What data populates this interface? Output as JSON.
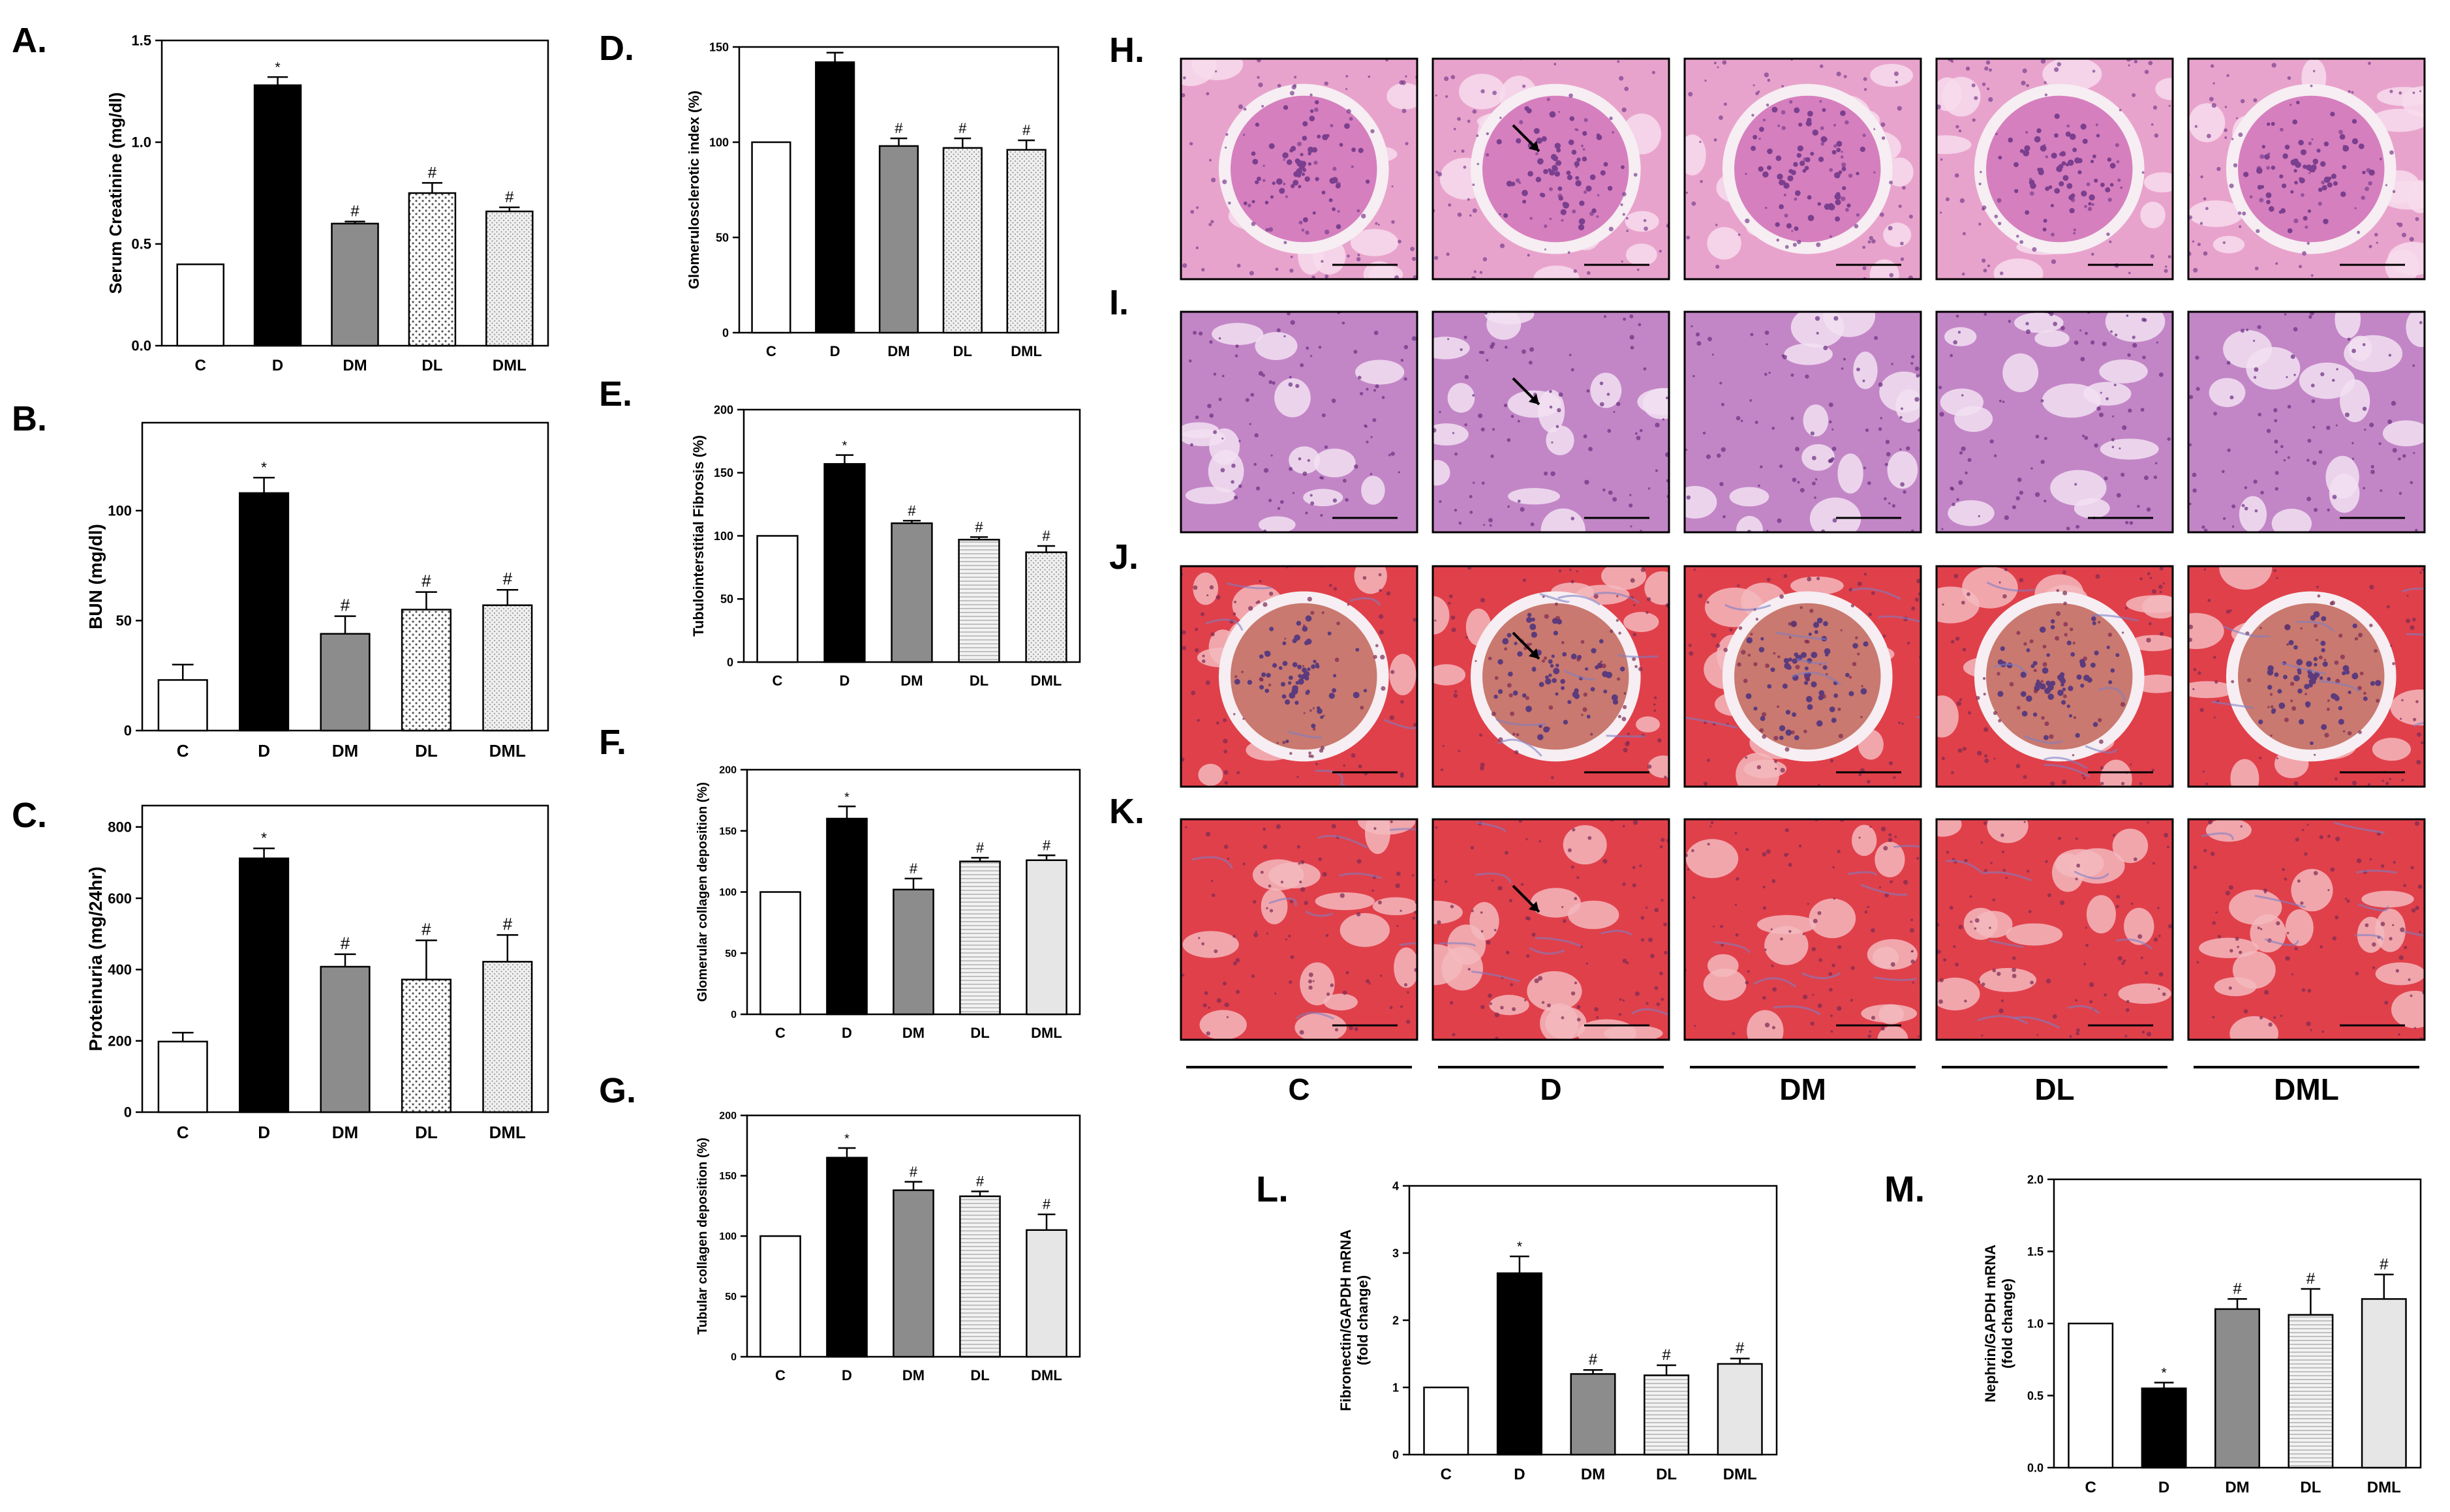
{
  "colors": {
    "C": "#ffffff",
    "D": "#000000",
    "DM": "#8c8c8c",
    "DL": "#d6d6d6",
    "DML": "#e6e6e6",
    "axis": "#000000",
    "he_background": "#e8a3cc",
    "he_nuclei": "#7a3f8e",
    "pas_background": "#c286c6",
    "pas_dark": "#6a2d80",
    "masson_red": "#e0404a",
    "masson_light": "#f3b9bd",
    "masson_blue": "#7d7ec4"
  },
  "chart_data": [
    {
      "panel": "A.",
      "type": "bar",
      "categories": [
        "C",
        "D",
        "DM",
        "DL",
        "DML"
      ],
      "values": [
        0.4,
        1.28,
        0.6,
        0.75,
        0.66
      ],
      "errors": [
        0,
        0.04,
        0.01,
        0.05,
        0.02
      ],
      "annotations": [
        "",
        "*",
        "#",
        "#",
        "#"
      ],
      "ylabel": "Serum Creatinine (mg/dl)",
      "ylim": [
        0,
        1.5
      ],
      "yticks": [
        0.0,
        0.5,
        1.0,
        1.5
      ],
      "ytick_labels": [
        "0.0",
        "0.5",
        "1.0",
        "1.5"
      ],
      "patterns": [
        "none",
        "none",
        "none",
        "dots",
        "fine-dots"
      ]
    },
    {
      "panel": "B.",
      "type": "bar",
      "categories": [
        "C",
        "D",
        "DM",
        "DL",
        "DML"
      ],
      "values": [
        23,
        108,
        44,
        55,
        57
      ],
      "errors": [
        7,
        7,
        8,
        8,
        7
      ],
      "annotations": [
        "",
        "*",
        "#",
        "#",
        "#"
      ],
      "ylabel": "BUN (mg/dl)",
      "ylim": [
        0,
        140
      ],
      "yticks": [
        0,
        50,
        100
      ],
      "ytick_labels": [
        "0",
        "50",
        "100"
      ],
      "patterns": [
        "none",
        "none",
        "none",
        "dots",
        "fine-dots"
      ]
    },
    {
      "panel": "C.",
      "type": "bar",
      "categories": [
        "C",
        "D",
        "DM",
        "DL",
        "DML"
      ],
      "values": [
        198,
        712,
        408,
        372,
        422
      ],
      "errors": [
        25,
        28,
        35,
        110,
        75
      ],
      "annotations": [
        "",
        "*",
        "#",
        "#",
        "#"
      ],
      "ylabel": "Proteinuria (mg/24hr)",
      "ylim": [
        0,
        860
      ],
      "yticks": [
        0,
        200,
        400,
        600,
        800
      ],
      "ytick_labels": [
        "0",
        "200",
        "400",
        "600",
        "800"
      ],
      "patterns": [
        "none",
        "none",
        "none",
        "dots",
        "fine-dots"
      ]
    },
    {
      "panel": "D.",
      "type": "bar",
      "categories": [
        "C",
        "D",
        "DM",
        "DL",
        "DML"
      ],
      "values": [
        100,
        142,
        98,
        97,
        96
      ],
      "errors": [
        0,
        5,
        4,
        5,
        5
      ],
      "annotations": [
        "",
        "",
        "#",
        "#",
        "#"
      ],
      "ylabel": "Glomerulosclerotic index (%)",
      "ylim": [
        0,
        150
      ],
      "yticks": [
        0,
        50,
        100,
        150
      ],
      "ytick_labels": [
        "0",
        "50",
        "100",
        "150"
      ],
      "patterns": [
        "none",
        "none",
        "none",
        "fine-dots",
        "fine-dots"
      ]
    },
    {
      "panel": "E.",
      "type": "bar",
      "categories": [
        "C",
        "D",
        "DM",
        "DL",
        "DML"
      ],
      "values": [
        100,
        157,
        110,
        97,
        87
      ],
      "errors": [
        0,
        7,
        2,
        2,
        5
      ],
      "annotations": [
        "",
        "*",
        "#",
        "#",
        "#"
      ],
      "ylabel": "Tubulointerstitial Fibrosis (%)",
      "ylim": [
        0,
        200
      ],
      "yticks": [
        0,
        50,
        100,
        150,
        200
      ],
      "ytick_labels": [
        "0",
        "50",
        "100",
        "150",
        "200"
      ],
      "patterns": [
        "none",
        "none",
        "none",
        "hlines",
        "fine-dots"
      ]
    },
    {
      "panel": "F.",
      "type": "bar",
      "categories": [
        "C",
        "D",
        "DM",
        "DL",
        "DML"
      ],
      "values": [
        100,
        160,
        102,
        125,
        126
      ],
      "errors": [
        0,
        10,
        9,
        3,
        4
      ],
      "annotations": [
        "",
        "*",
        "#",
        "#",
        "#"
      ],
      "ylabel": "Glomerular collagen deposition (%)",
      "ylim": [
        0,
        200
      ],
      "yticks": [
        0,
        50,
        100,
        150,
        200
      ],
      "ytick_labels": [
        "0",
        "50",
        "100",
        "150",
        "200"
      ],
      "patterns": [
        "none",
        "none",
        "none",
        "hlines",
        "none"
      ]
    },
    {
      "panel": "G.",
      "type": "bar",
      "categories": [
        "C",
        "D",
        "DM",
        "DL",
        "DML"
      ],
      "values": [
        100,
        165,
        138,
        133,
        105
      ],
      "errors": [
        0,
        8,
        7,
        4,
        13
      ],
      "annotations": [
        "",
        "*",
        "#",
        "#",
        "#"
      ],
      "ylabel": "Tubular collagen deposition (%)",
      "ylim": [
        0,
        200
      ],
      "yticks": [
        0,
        50,
        100,
        150,
        200
      ],
      "ytick_labels": [
        "0",
        "50",
        "100",
        "150",
        "200"
      ],
      "patterns": [
        "none",
        "none",
        "none",
        "hlines",
        "none"
      ]
    },
    {
      "panel": "L.",
      "type": "bar",
      "categories": [
        "C",
        "D",
        "DM",
        "DL",
        "DML"
      ],
      "values": [
        1.0,
        2.7,
        1.2,
        1.18,
        1.35
      ],
      "errors": [
        0,
        0.25,
        0.06,
        0.15,
        0.08
      ],
      "annotations": [
        "",
        "*",
        "#",
        "#",
        "#"
      ],
      "ylabel": "Fibronectin/GAPDH mRNA",
      "ylabel2": "(fold change)",
      "ylim": [
        0,
        4
      ],
      "yticks": [
        0,
        1,
        2,
        3,
        4
      ],
      "ytick_labels": [
        "0",
        "1",
        "2",
        "3",
        "4"
      ],
      "patterns": [
        "none",
        "none",
        "none",
        "hlines",
        "none"
      ]
    },
    {
      "panel": "M.",
      "type": "bar",
      "categories": [
        "C",
        "D",
        "DM",
        "DL",
        "DML"
      ],
      "values": [
        1.0,
        0.55,
        1.1,
        1.06,
        1.17
      ],
      "errors": [
        0,
        0.04,
        0.07,
        0.18,
        0.17
      ],
      "annotations": [
        "",
        "*",
        "#",
        "#",
        "#"
      ],
      "ylabel": "Nephrin/GAPDH mRNA",
      "ylabel2": "(fold change)",
      "ylim": [
        0,
        2.0
      ],
      "yticks": [
        0,
        0.5,
        1.0,
        1.5,
        2.0
      ],
      "ytick_labels": [
        "0.0",
        "0.5",
        "1.0",
        "1.5",
        "2.0"
      ],
      "patterns": [
        "none",
        "none",
        "none",
        "hlines",
        "none"
      ]
    }
  ],
  "histology": {
    "row_labels": [
      "H.",
      "I.",
      "J.",
      "K."
    ],
    "column_labels": [
      "C",
      "D",
      "DM",
      "DL",
      "DML"
    ],
    "rows": [
      {
        "stain": "he",
        "arrows_in_column": [
          "D"
        ]
      },
      {
        "stain": "pas",
        "arrows_in_column": [
          "D"
        ]
      },
      {
        "stain": "masson_glom",
        "arrows_in_column": [
          "D"
        ]
      },
      {
        "stain": "masson_tub",
        "arrows_in_column": [
          "D"
        ]
      }
    ]
  }
}
